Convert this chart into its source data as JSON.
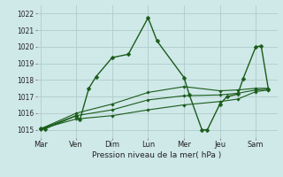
{
  "background_color": "#cfe8e8",
  "grid_color": "#b0cccc",
  "line_color": "#1a5c1a",
  "marker_color": "#1a5c1a",
  "xlabel": "Pression niveau de la mer( hPa )",
  "ylim": [
    1014.5,
    1022.5
  ],
  "yticks": [
    1015,
    1016,
    1017,
    1018,
    1019,
    1020,
    1021,
    1022
  ],
  "xtick_labels": [
    "Mar",
    "Ven",
    "Dim",
    "Lun",
    "Mer",
    "Jeu",
    "Sam"
  ],
  "xtick_positions": [
    0,
    1,
    2,
    3,
    4,
    5,
    6
  ],
  "xlim": [
    -0.1,
    6.6
  ],
  "series": [
    {
      "x": [
        0,
        0.12,
        1.0,
        1.1,
        1.35,
        1.55,
        2.0,
        2.45,
        3.0,
        3.25,
        4.0,
        4.15,
        4.5,
        4.65,
        5.0,
        5.2,
        5.5,
        5.65,
        6.0,
        6.15,
        6.35
      ],
      "y": [
        1015.1,
        1015.05,
        1015.85,
        1015.6,
        1017.5,
        1018.2,
        1019.35,
        1019.55,
        1021.75,
        1020.35,
        1018.15,
        1017.1,
        1015.0,
        1015.0,
        1016.55,
        1017.0,
        1017.15,
        1018.1,
        1020.0,
        1020.05,
        1017.45
      ],
      "lw": 1.0,
      "ms": 2.5
    },
    {
      "x": [
        0,
        1,
        2,
        3,
        4,
        5,
        5.5,
        6,
        6.35
      ],
      "y": [
        1015.05,
        1016.0,
        1016.55,
        1017.25,
        1017.6,
        1017.35,
        1017.4,
        1017.5,
        1017.5
      ],
      "lw": 0.8,
      "ms": 1.8
    },
    {
      "x": [
        0,
        1,
        2,
        3,
        4,
        5,
        5.5,
        6,
        6.35
      ],
      "y": [
        1015.05,
        1015.85,
        1016.2,
        1016.8,
        1017.05,
        1017.1,
        1017.2,
        1017.4,
        1017.45
      ],
      "lw": 0.8,
      "ms": 1.8
    },
    {
      "x": [
        0,
        1,
        2,
        3,
        4,
        5,
        5.5,
        6,
        6.35
      ],
      "y": [
        1015.05,
        1015.65,
        1015.85,
        1016.2,
        1016.5,
        1016.7,
        1016.85,
        1017.3,
        1017.4
      ],
      "lw": 0.8,
      "ms": 1.8
    }
  ]
}
